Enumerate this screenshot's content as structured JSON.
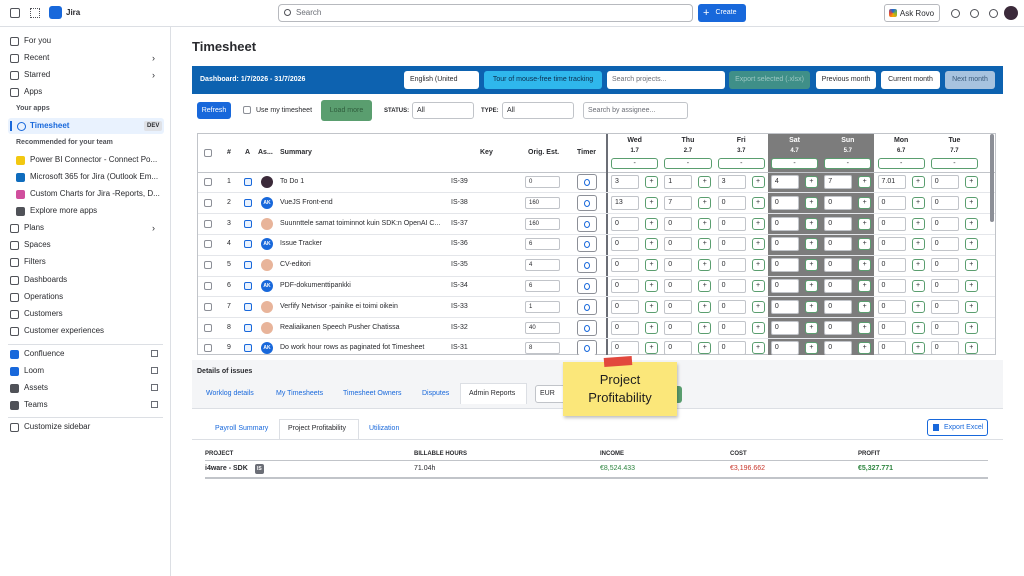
{
  "topbar": {
    "app": "Jira",
    "search": "Search",
    "create": "Create",
    "rovo": "Ask Rovo"
  },
  "sidebar": {
    "nav": [
      "For you",
      "Recent",
      "Starred",
      "Apps"
    ],
    "your_apps_heading": "Your apps",
    "timesheet": "Timesheet",
    "timesheet_badge": "DEV",
    "recommended_heading": "Recommended for your team",
    "recommended": [
      "Power BI Connector - Connect Po...",
      "Microsoft 365 for Jira (Outlook Em...",
      "Custom Charts for Jira -Reports, D...",
      "Explore more apps"
    ],
    "nav2": [
      "Plans",
      "Spaces",
      "Filters",
      "Dashboards",
      "Operations",
      "Customers",
      "Customer experiences"
    ],
    "external": [
      "Confluence",
      "Loom",
      "Assets",
      "Teams"
    ],
    "customize": "Customize sidebar"
  },
  "page_title": "Timesheet",
  "toolbar": {
    "dashboard": "Dashboard: 1/7/2026 - 31/7/2026",
    "language": "English (United",
    "tour": "Tour of mouse-free time tracking",
    "search_projects": "Search projects...",
    "export": "Export selected (.xlsx)",
    "previous": "Previous month",
    "current": "Current month",
    "next": "Next month"
  },
  "filters": {
    "refresh": "Refresh",
    "use_my": "Use my timesheet",
    "load_more": "Load more",
    "status_label": "STATUS:",
    "status": "All",
    "type_label": "TYPE:",
    "type": "All",
    "search_assignee": "Search by assignee..."
  },
  "table": {
    "headers": {
      "num": "#",
      "a": "A",
      "assignee": "As...",
      "summary": "Summary",
      "key": "Key",
      "estimate": "Orig. Est.",
      "timer": "Timer"
    },
    "days": [
      {
        "day": "Wed",
        "date": "1.7",
        "weekend": false
      },
      {
        "day": "Thu",
        "date": "2.7",
        "weekend": false
      },
      {
        "day": "Fri",
        "date": "3.7",
        "weekend": false
      },
      {
        "day": "Sat",
        "date": "4.7",
        "weekend": true
      },
      {
        "day": "Sun",
        "date": "5.7",
        "weekend": true
      },
      {
        "day": "Mon",
        "date": "6.7",
        "weekend": false
      },
      {
        "day": "Tue",
        "date": "7.7",
        "weekend": false
      }
    ],
    "day_button": "-",
    "add_button": "+",
    "rows": [
      {
        "num": 1,
        "summary": "To Do 1",
        "key": "IS-39",
        "estimate": 0,
        "hours": [
          3,
          1,
          3,
          4,
          7,
          7.01,
          0
        ]
      },
      {
        "num": 2,
        "avatar": "AK",
        "summary": "VueJS Front-end",
        "key": "IS-38",
        "estimate": 160,
        "hours": [
          13,
          7,
          0,
          0,
          0,
          0,
          0
        ]
      },
      {
        "num": 3,
        "summary": "Suunnttele samat toiminnot kuin SDK:n OpenAI C...",
        "key": "IS-37",
        "estimate": 160,
        "hours": [
          0,
          0,
          0,
          0,
          0,
          0,
          0
        ]
      },
      {
        "num": 4,
        "avatar": "AK",
        "summary": "Issue Tracker",
        "key": "IS-36",
        "estimate": 6,
        "hours": [
          0,
          0,
          0,
          0,
          0,
          0,
          0
        ]
      },
      {
        "num": 5,
        "summary": "CV-editori",
        "key": "IS-35",
        "estimate": 4,
        "hours": [
          0,
          0,
          0,
          0,
          0,
          0,
          0
        ]
      },
      {
        "num": 6,
        "avatar": "AK",
        "summary": "PDF-dokumenttipankki",
        "key": "IS-34",
        "estimate": 6,
        "hours": [
          0,
          0,
          0,
          0,
          0,
          0,
          0
        ]
      },
      {
        "num": 7,
        "summary": "Verfify Netvisor -painike ei toimi oikein",
        "key": "IS-33",
        "estimate": 1,
        "hours": [
          0,
          0,
          0,
          0,
          0,
          0,
          0
        ]
      },
      {
        "num": 8,
        "summary": "Realiaikanen Speech Pusher Chatissa",
        "key": "IS-32",
        "estimate": 40,
        "hours": [
          0,
          0,
          0,
          0,
          0,
          0,
          0
        ]
      },
      {
        "num": 9,
        "avatar": "AK",
        "summary": "Do work hour rows as paginated fot Timesheet",
        "key": "IS-31",
        "estimate": 8,
        "hours": [
          0,
          0,
          0,
          0,
          0,
          0,
          0
        ]
      }
    ]
  },
  "details": {
    "heading": "Details of issues",
    "tabs": [
      "Worklog details",
      "My Timesheets",
      "Timesheet Owners",
      "Disputes",
      "Admin Reports"
    ],
    "currency": "EUR",
    "subtabs": [
      "Payroll Summary",
      "Project Profitability",
      "Utilization"
    ],
    "export": "Export Excel",
    "columns": [
      "PROJECT",
      "BILLABLE HOURS",
      "INCOME",
      "COST",
      "PROFIT"
    ],
    "rows": [
      {
        "project": "i4ware - SDK",
        "badge": "IS",
        "hours": "71.04h",
        "income": "€8,524.433",
        "cost": "€3,196.662",
        "profit": "€5,327.771"
      }
    ]
  },
  "sticky_note": "Project Profitability"
}
